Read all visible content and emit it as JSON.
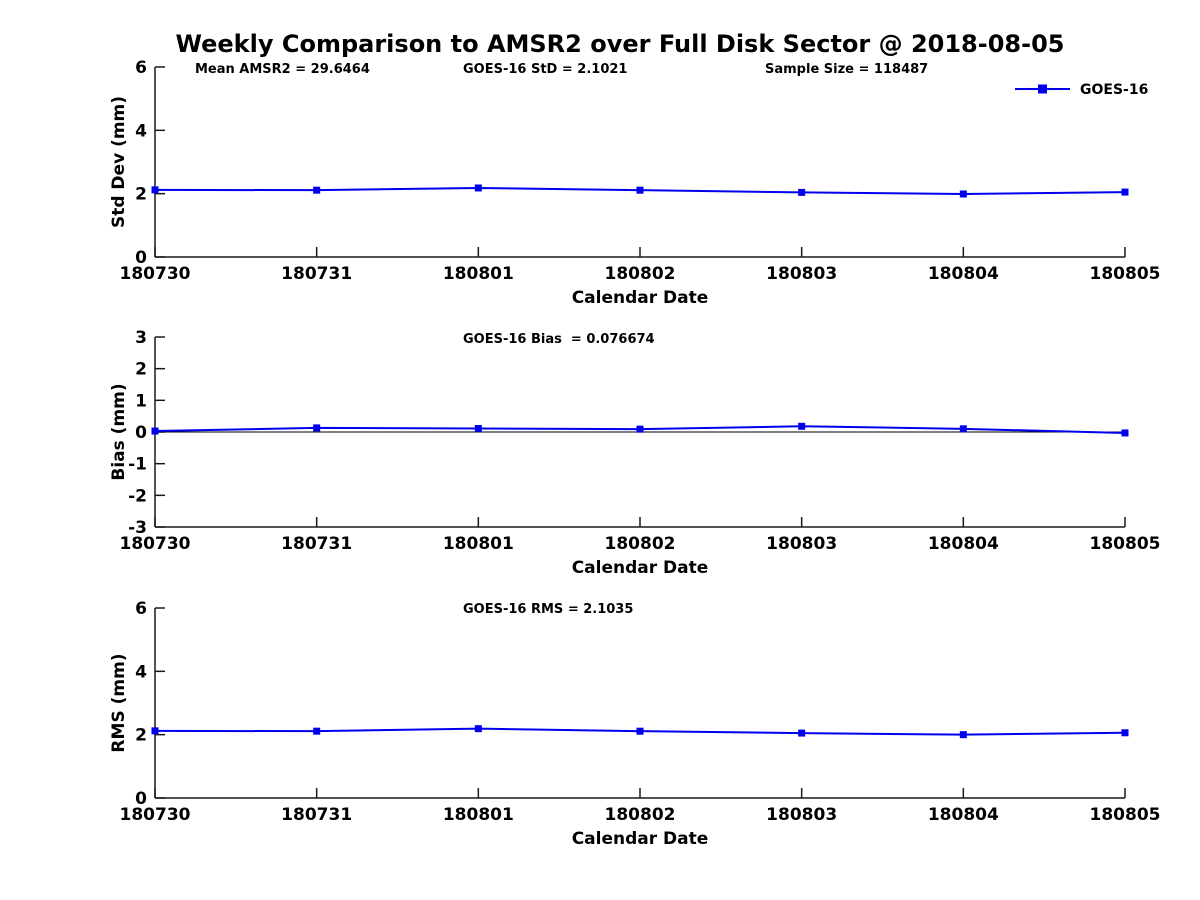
{
  "page": {
    "title": "Weekly Comparison to AMSR2 over Full Disk Sector @ 2018-08-05"
  },
  "legend": {
    "label": "GOES-16",
    "position": "top-right"
  },
  "colors": {
    "series": "#0000ee",
    "axis": "#1a1a1a",
    "text": "#000000",
    "zero_line": "#000000",
    "background": "#ffffff"
  },
  "chart_data": [
    {
      "type": "line",
      "id": "std-dev",
      "annotations": [
        "Mean AMSR2 = 29.6464",
        "GOES-16 StD = 2.1021",
        "Sample Size = 118487"
      ],
      "xlabel": "Calendar Date",
      "ylabel": "Std Dev (mm)",
      "categories": [
        "180730",
        "180731",
        "180801",
        "180802",
        "180803",
        "180804",
        "180805"
      ],
      "ylim": [
        0,
        6
      ],
      "yticks": [
        0,
        2,
        4,
        6
      ],
      "grid": false,
      "zero_line": false,
      "series": [
        {
          "name": "GOES-16",
          "values": [
            2.12,
            2.11,
            2.18,
            2.11,
            2.04,
            1.99,
            2.05
          ]
        }
      ]
    },
    {
      "type": "line",
      "id": "bias",
      "annotations": [
        "GOES-16 Bias  = 0.076674"
      ],
      "xlabel": "Calendar Date",
      "ylabel": "Bias (mm)",
      "categories": [
        "180730",
        "180731",
        "180801",
        "180802",
        "180803",
        "180804",
        "180805"
      ],
      "ylim": [
        -3,
        3
      ],
      "yticks": [
        -3,
        -2,
        -1,
        0,
        1,
        2,
        3
      ],
      "grid": false,
      "zero_line": true,
      "series": [
        {
          "name": "GOES-16",
          "values": [
            0.03,
            0.13,
            0.11,
            0.09,
            0.18,
            0.1,
            -0.03
          ]
        }
      ]
    },
    {
      "type": "line",
      "id": "rms",
      "annotations": [
        "GOES-16 RMS = 2.1035"
      ],
      "xlabel": "Calendar Date",
      "ylabel": "RMS (mm)",
      "categories": [
        "180730",
        "180731",
        "180801",
        "180802",
        "180803",
        "180804",
        "180805"
      ],
      "ylim": [
        0,
        6
      ],
      "yticks": [
        0,
        2,
        4,
        6
      ],
      "grid": false,
      "zero_line": false,
      "series": [
        {
          "name": "GOES-16",
          "values": [
            2.12,
            2.11,
            2.19,
            2.11,
            2.05,
            2.0,
            2.06
          ]
        }
      ]
    }
  ]
}
